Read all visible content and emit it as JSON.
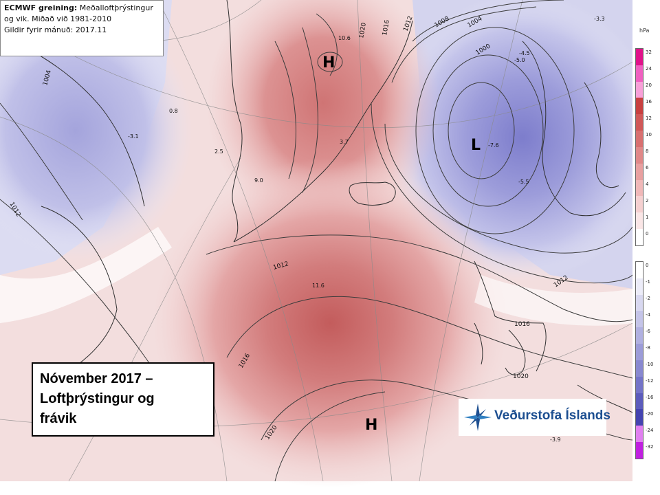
{
  "info": {
    "line1_bold": "ECMWF greining:",
    "line1_rest": " Meðalloftþrýstingur",
    "line2": "og vik. Miðað við 1981-2010",
    "line3": "Gildir fyrir mánuð: 2017.11"
  },
  "title": {
    "line1": "Nóvember 2017 –",
    "line2": "Loftþrýstingur og",
    "line3": "frávik"
  },
  "logo": {
    "text": "Veðurstofa Íslands"
  },
  "legend": {
    "unit": "hPa",
    "positive": [
      "32",
      "24",
      "20",
      "16",
      "12",
      "10",
      "8",
      "6",
      "4",
      "2",
      "1",
      "0"
    ],
    "negative": [
      "0",
      "-1",
      "-2",
      "-4",
      "-6",
      "-8",
      "-10",
      "-12",
      "-16",
      "-20",
      "-24",
      "-32"
    ],
    "positive_colors": [
      "#e0128a",
      "#f060c0",
      "#f8a0d8",
      "#c84040",
      "#d05858",
      "#d87070",
      "#e08888",
      "#e8a0a0",
      "#f0b8b8",
      "#f5d0d0",
      "#fae6e6",
      "#ffffff"
    ],
    "negative_colors": [
      "#ffffff",
      "#ececf8",
      "#d8d8f0",
      "#c4c4e8",
      "#b0b0e0",
      "#9c9cd8",
      "#8888d0",
      "#7474c8",
      "#5c5cbc",
      "#4444b0",
      "#e080f0",
      "#c020e0"
    ]
  },
  "pressure_centers": [
    {
      "label": "H"
    },
    {
      "label": "L"
    },
    {
      "label": "H"
    }
  ],
  "isobar_labels": [
    "1004",
    "1012",
    "1020",
    "1016",
    "1012",
    "1008",
    "1004",
    "1000",
    "1012",
    "1016",
    "1016",
    "1012",
    "1020",
    "1020"
  ],
  "anomaly_values": [
    "10.6",
    "0.8",
    "-3.1",
    "2.5",
    "9.0",
    "3.7",
    "-4.5",
    "-5.0",
    "-7.6",
    "-5.5",
    "11.6",
    "-3.9",
    "-3.3"
  ]
}
